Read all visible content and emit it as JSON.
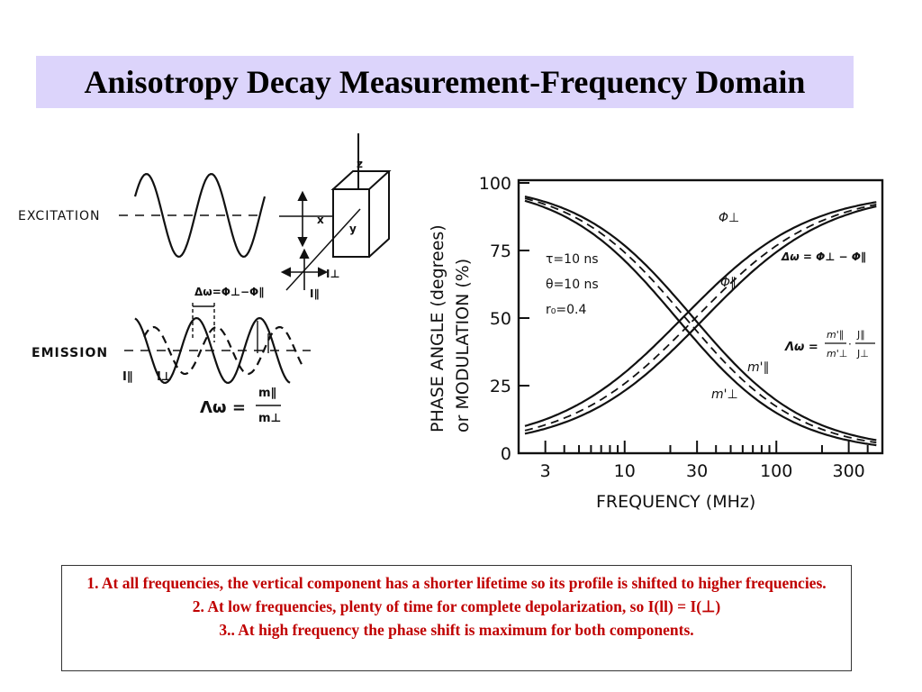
{
  "title": "Anisotropy Decay Measurement-Frequency Domain",
  "left_diagram": {
    "excitation_label": "EXCITATION",
    "emission_label": "EMISSION",
    "axis_z": "z",
    "axis_x": "x",
    "axis_y": "y",
    "i_perp": "I⊥",
    "i_par": "I∥",
    "delta_formula": "Δω=Φ⊥−Φ∥",
    "lambda_symbol": "Λω =",
    "lambda_num": "m∥",
    "lambda_den": "m⊥"
  },
  "chart": {
    "y_axis_label_line1": "PHASE ANGLE (degrees)",
    "y_axis_label_line2": "or MODULATION (%)",
    "x_axis_label": "FREQUENCY (MHz)",
    "y_ticks": [
      "100",
      "75",
      "50",
      "25",
      "0"
    ],
    "x_ticks": [
      "3",
      "10",
      "30",
      "100",
      "300"
    ],
    "params": [
      "τ=10 ns",
      "θ=10 ns",
      "r₀=0.4"
    ],
    "label_phi_perp": "Φ⊥",
    "label_phi_par": "Φ∥",
    "label_m_par": "m'∥",
    "label_m_perp": "m'⊥",
    "delta_eq": "Δω = Φ⊥ − Φ∥",
    "lambda_eq": "Λω =",
    "lambda_frac1_num": "m'∥",
    "lambda_frac1_den": "m'⊥",
    "lambda_frac2_num": "J∥",
    "lambda_frac2_den": "J⊥"
  },
  "notes": [
    "1. At all frequencies, the vertical component has a shorter lifetime so its profile is shifted to higher frequencies.",
    "2. At low frequencies, plenty of time for complete depolarization, so I(ll) = I(⊥)",
    "3.. At high frequency the phase shift is maximum for both components."
  ]
}
